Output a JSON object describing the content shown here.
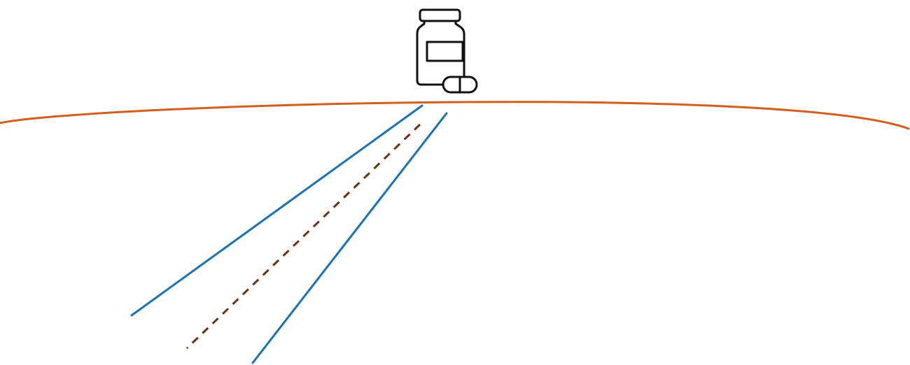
{
  "colors": {
    "background": "#ffffff",
    "horizon_curve": "#d35f1e",
    "boundary_lines": "#1872b8",
    "center_line": "#6b3312",
    "icon_stroke": "#111111"
  },
  "icon": {
    "name": "medicine-bottle-and-capsule-icon"
  },
  "elements": {
    "horizon": "curved-horizon-line",
    "left_boundary": "left-boundary-line",
    "right_boundary": "right-boundary-line",
    "center_line": "center-dashed-line"
  }
}
